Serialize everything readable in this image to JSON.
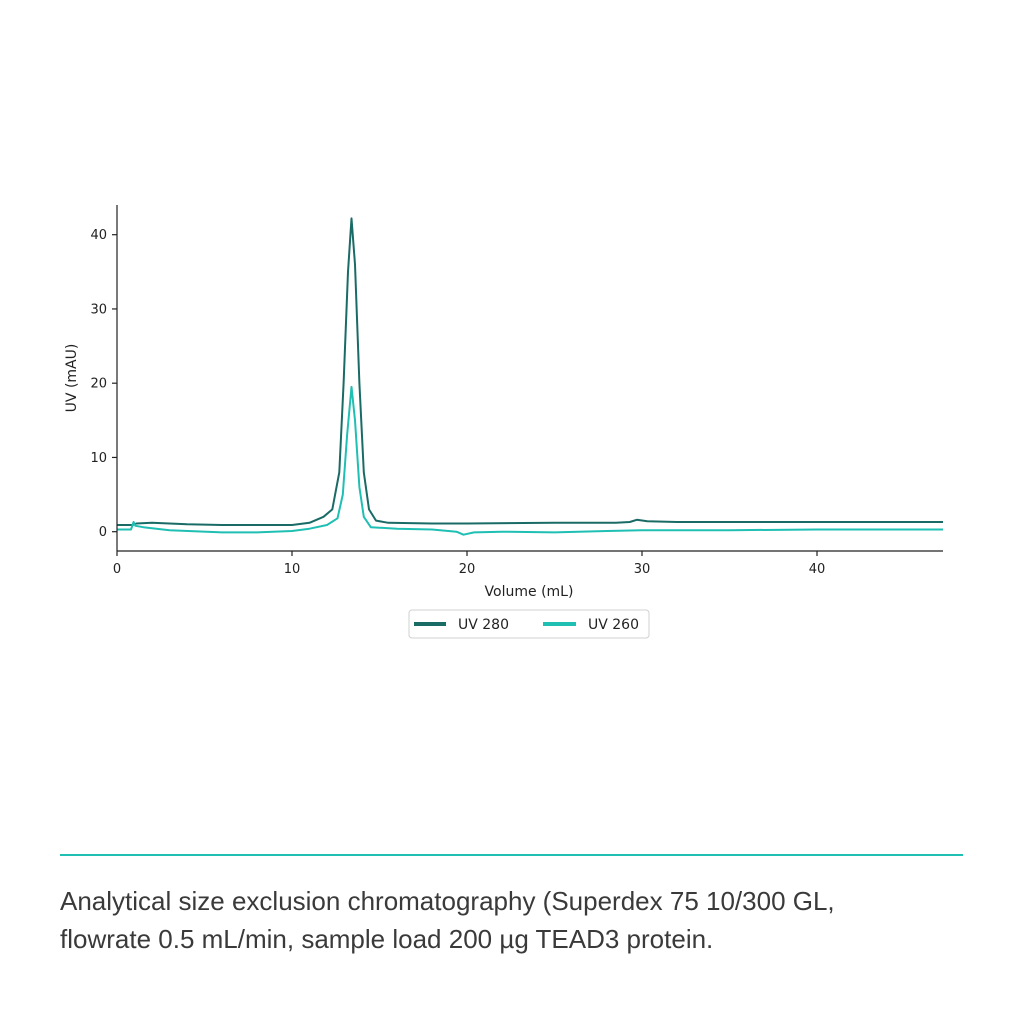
{
  "chart_data": {
    "type": "line",
    "xlabel": "Volume (mL)",
    "ylabel": "UV (mAU)",
    "xlim": [
      0,
      47.2
    ],
    "ylim": [
      -2.6,
      44
    ],
    "x_ticks": [
      "0",
      "10",
      "20",
      "30",
      "40"
    ],
    "y_ticks": [
      "0",
      "10",
      "20",
      "30",
      "40"
    ],
    "grid": false,
    "legend": "bottom-center",
    "series": [
      {
        "name": "UV 280",
        "color": "#1a6b66",
        "points": [
          [
            0,
            0.9
          ],
          [
            0.9,
            0.9
          ],
          [
            1.1,
            1.1
          ],
          [
            2,
            1.2
          ],
          [
            4,
            1.0
          ],
          [
            6,
            0.9
          ],
          [
            8,
            0.9
          ],
          [
            10,
            0.9
          ],
          [
            11,
            1.2
          ],
          [
            11.8,
            2.0
          ],
          [
            12.3,
            3.0
          ],
          [
            12.7,
            8
          ],
          [
            12.95,
            20
          ],
          [
            13.2,
            35
          ],
          [
            13.4,
            42.2
          ],
          [
            13.6,
            36
          ],
          [
            13.85,
            20
          ],
          [
            14.1,
            8
          ],
          [
            14.4,
            3
          ],
          [
            14.8,
            1.5
          ],
          [
            15.5,
            1.2
          ],
          [
            18,
            1.1
          ],
          [
            20,
            1.1
          ],
          [
            25,
            1.2
          ],
          [
            28.5,
            1.2
          ],
          [
            29.3,
            1.3
          ],
          [
            29.7,
            1.6
          ],
          [
            30.3,
            1.4
          ],
          [
            32,
            1.3
          ],
          [
            35,
            1.3
          ],
          [
            40,
            1.3
          ],
          [
            47.2,
            1.3
          ]
        ]
      },
      {
        "name": "UV 260",
        "color": "#1fbfb3",
        "points": [
          [
            0,
            0.3
          ],
          [
            0.8,
            0.3
          ],
          [
            0.95,
            1.3
          ],
          [
            1.05,
            0.8
          ],
          [
            1.5,
            0.6
          ],
          [
            3,
            0.2
          ],
          [
            6,
            -0.1
          ],
          [
            8,
            -0.1
          ],
          [
            10,
            0.1
          ],
          [
            11,
            0.4
          ],
          [
            12,
            0.9
          ],
          [
            12.6,
            1.8
          ],
          [
            12.9,
            5
          ],
          [
            13.15,
            13
          ],
          [
            13.4,
            19.5
          ],
          [
            13.6,
            15
          ],
          [
            13.85,
            6
          ],
          [
            14.1,
            2
          ],
          [
            14.5,
            0.6
          ],
          [
            16,
            0.4
          ],
          [
            18,
            0.3
          ],
          [
            19.4,
            0.0
          ],
          [
            19.8,
            -0.4
          ],
          [
            20.4,
            -0.1
          ],
          [
            22,
            0.0
          ],
          [
            25,
            -0.1
          ],
          [
            28,
            0.1
          ],
          [
            30,
            0.2
          ],
          [
            35,
            0.2
          ],
          [
            40,
            0.3
          ],
          [
            47.2,
            0.3
          ]
        ]
      }
    ]
  },
  "caption": {
    "line1": "Analytical size exclusion chromatography (Superdex 75 10/300 GL,",
    "line2": "flowrate 0.5 mL/min, sample load 200 µg TEAD3 protein."
  }
}
